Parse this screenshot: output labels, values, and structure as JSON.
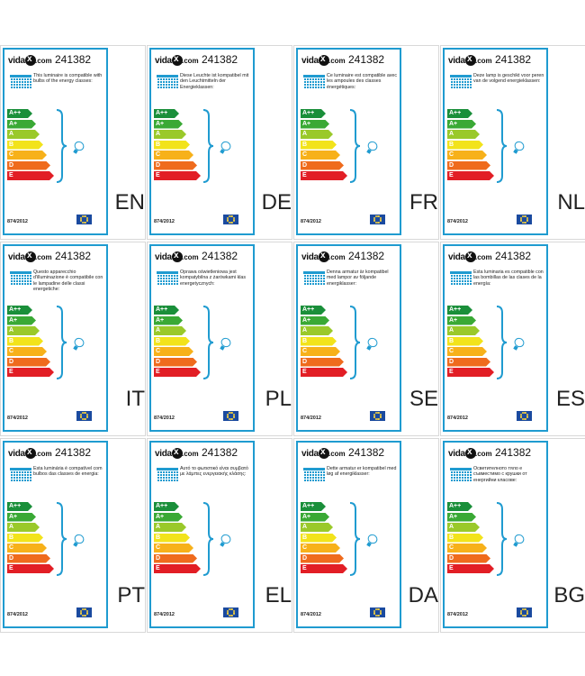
{
  "brand": {
    "prefix": "vida",
    "mark": "x",
    "suffix": ".com"
  },
  "product_code": "241382",
  "regulation": "874/2012",
  "energy_classes": [
    {
      "label": "A++",
      "color": "#1a8f3a"
    },
    {
      "label": "A+",
      "color": "#3aa935"
    },
    {
      "label": "A",
      "color": "#9ac92a"
    },
    {
      "label": "B",
      "color": "#f2e31b"
    },
    {
      "label": "C",
      "color": "#f7b11a"
    },
    {
      "label": "D",
      "color": "#ef6b1d"
    },
    {
      "label": "E",
      "color": "#e21e25"
    }
  ],
  "labels": [
    {
      "lang": "EN",
      "text": "This luminaire is compatible with bulbs of the energy classes:"
    },
    {
      "lang": "DE",
      "text": "Diese Leuchte ist kompatibel mit den Leuchtmitteln der Energieklassen:"
    },
    {
      "lang": "FR",
      "text": "Ce luminaire est compatible avec les ampoules des classes énergétiques:"
    },
    {
      "lang": "NL",
      "text": "Deze lamp is geschikt voor peren van de volgend energieklassen:"
    },
    {
      "lang": "IT",
      "text": "Questo apparecchio d'illuminazione è compatibile con le lampadine delle classi energetiche:"
    },
    {
      "lang": "PL",
      "text": "Oprawa oświetleniowa jest kompatybilna z żarówkami klas energetycznych:"
    },
    {
      "lang": "SE",
      "text": "Denna armatur är kompatibel med lampor av följande energiklasser:"
    },
    {
      "lang": "ES",
      "text": "Esta luminaria es compatible con las bombillas de las clases de la energía:"
    },
    {
      "lang": "PT",
      "text": "Esta luminária é compatível com bulbos das classes de energia:"
    },
    {
      "lang": "EL",
      "text": "Αυτό το φωτιστικό είναι συμβατό με λάμπες ενεργειακής κλάσης:"
    },
    {
      "lang": "DA",
      "text": "Dette armatur er kompatibel med løg af energiklasser:"
    },
    {
      "lang": "BG",
      "text": "Осветителното тяло е съвместимо с крушки от енергийни класове:"
    }
  ]
}
